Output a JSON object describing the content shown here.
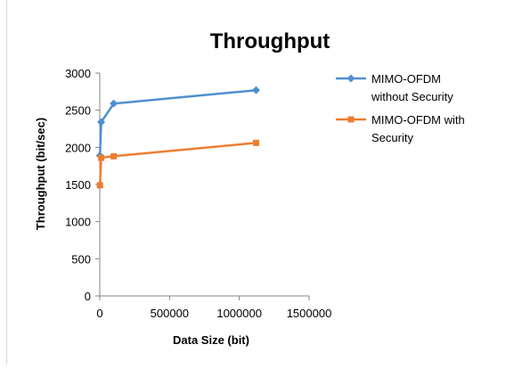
{
  "chart_data": {
    "type": "line",
    "title": "Throughput",
    "xlabel": "Data Size (bit)",
    "ylabel": "Throughput  (bit/sec)",
    "xlim": [
      0,
      1500000
    ],
    "ylim": [
      0,
      3000
    ],
    "xticks": [
      0,
      500000,
      1000000,
      1500000
    ],
    "xtick_labels": [
      "0",
      "500000",
      "1000000",
      "1500000"
    ],
    "yticks": [
      0,
      500,
      1000,
      1500,
      2000,
      2500,
      3000
    ],
    "ytick_labels": [
      "0",
      "500",
      "1000",
      "1500",
      "2000",
      "2500",
      "3000"
    ],
    "grid": false,
    "legend_position": "right",
    "series": [
      {
        "name": "MIMO-OFDM without Security",
        "legend_lines": [
          "MIMO-OFDM",
          "without Security"
        ],
        "color": "#4f8fd0",
        "marker": "diamond",
        "x": [
          1000,
          10000,
          100000,
          1120000
        ],
        "y": [
          1890,
          2340,
          2590,
          2770
        ]
      },
      {
        "name": "MIMO-OFDM with Security",
        "legend_lines": [
          "MIMO-OFDM with",
          "Security"
        ],
        "color": "#ed7d31",
        "marker": "square",
        "x": [
          1000,
          10000,
          100000,
          1120000
        ],
        "y": [
          1490,
          1860,
          1880,
          2060
        ]
      }
    ]
  }
}
